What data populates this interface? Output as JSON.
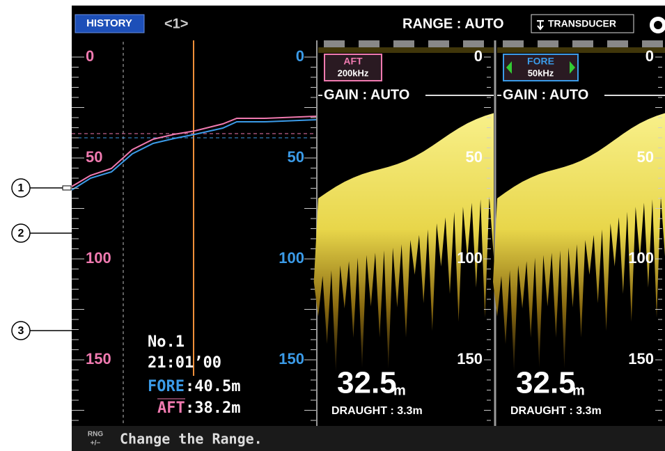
{
  "header": {
    "mode": "HISTORY",
    "page": "<1>",
    "range": "RANGE : AUTO",
    "transducer": "TRANSDUCER"
  },
  "history": {
    "scale_aft": [
      0,
      50,
      100,
      150
    ],
    "scale_fore": [
      0,
      50,
      100,
      150
    ],
    "number": "No.1",
    "time": "21:01’00",
    "fore_label": "FORE",
    "fore_value": ":40.5m",
    "aft_label": "AFT",
    "aft_value": ":38.2m"
  },
  "panels": [
    {
      "label": "AFT",
      "freq": "200kHz",
      "gain": "GAIN : AUTO",
      "scale": [
        0,
        50,
        100,
        150
      ],
      "depth": "32.5",
      "unit": "m",
      "draught": "DRAUGHT : 3.3m"
    },
    {
      "label": "FORE",
      "freq": "50kHz",
      "gain": "GAIN : AUTO",
      "scale": [
        0,
        50,
        100,
        150
      ],
      "depth": "32.5",
      "unit": "m",
      "draught": "DRAUGHT : 3.3m"
    }
  ],
  "footer": {
    "key_top": "RNG",
    "key_bottom": "+/−",
    "message": "Change the Range."
  },
  "callouts": [
    "1",
    "2",
    "3"
  ]
}
